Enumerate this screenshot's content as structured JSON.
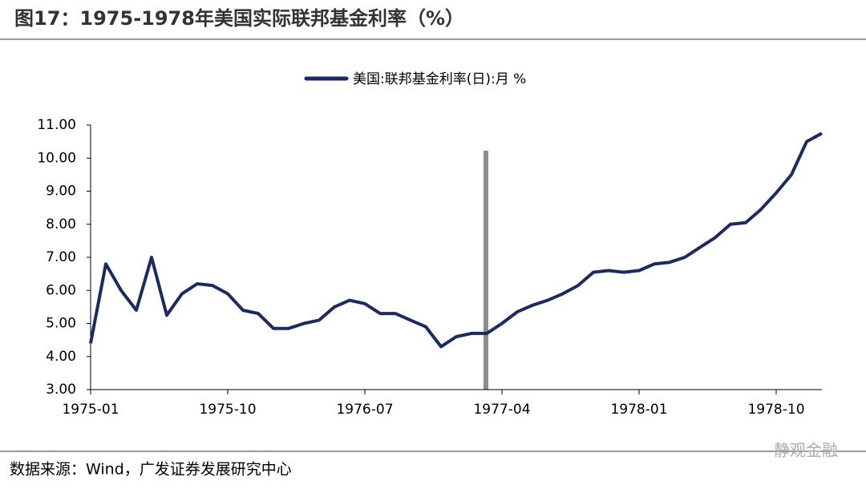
{
  "header": {
    "title": "图17：1975-1978年美国实际联邦基金利率（%）"
  },
  "chart_data": {
    "type": "line",
    "categories": [
      "1975-01",
      null,
      null,
      null,
      null,
      null,
      null,
      null,
      null,
      "1975-10",
      null,
      null,
      null,
      null,
      null,
      null,
      null,
      null,
      "1976-07",
      null,
      null,
      null,
      null,
      null,
      null,
      null,
      null,
      "1977-04",
      null,
      null,
      null,
      null,
      null,
      null,
      null,
      null,
      "1978-01",
      null,
      null,
      null,
      null,
      null,
      null,
      null,
      null,
      "1978-10",
      null,
      null,
      null
    ],
    "series": [
      {
        "name": "美国:联邦基金利率(日):月 %",
        "color": "#1b2a63",
        "values": [
          4.4,
          6.8,
          6.0,
          5.4,
          7.0,
          5.25,
          5.9,
          6.2,
          6.15,
          5.9,
          5.4,
          5.3,
          4.85,
          4.85,
          5.0,
          5.1,
          5.5,
          5.7,
          5.6,
          5.3,
          5.3,
          5.1,
          4.9,
          4.3,
          4.6,
          4.7,
          4.7,
          5.0,
          5.35,
          5.55,
          5.7,
          5.9,
          6.15,
          6.55,
          6.6,
          6.55,
          6.6,
          6.8,
          6.85,
          7.0,
          7.3,
          7.6,
          8.0,
          8.05,
          8.45,
          8.95,
          9.5,
          10.5,
          10.75
        ]
      }
    ],
    "ylim": [
      3,
      11
    ],
    "yticks": [
      {
        "value": 3,
        "label": "3.00"
      },
      {
        "value": 4,
        "label": "4.00"
      },
      {
        "value": 5,
        "label": "5.00"
      },
      {
        "value": 6,
        "label": "6.00"
      },
      {
        "value": 7,
        "label": "7.00"
      },
      {
        "value": 8,
        "label": "8.00"
      },
      {
        "value": 9,
        "label": "9.00"
      },
      {
        "value": 10,
        "label": "10.00"
      },
      {
        "value": 11,
        "label": "11.00"
      }
    ],
    "legend": "top"
  },
  "footer": {
    "source": "数据来源：Wind，广发证券发展研究中心",
    "watermark": "静观金融"
  }
}
